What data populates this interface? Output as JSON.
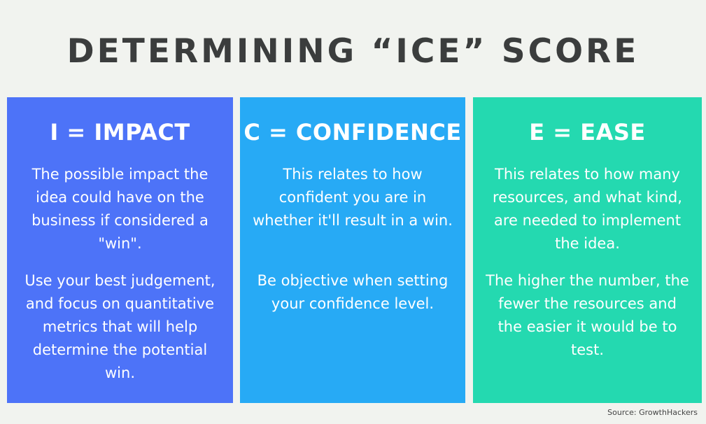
{
  "title": "DETERMINING “ICE” SCORE",
  "colors": {
    "background": "#f1f3ef",
    "title": "#3b3d3d",
    "impact": "#4d73f8",
    "confidence": "#27aaf5",
    "ease": "#24d9b0"
  },
  "cards": [
    {
      "heading": "I = IMPACT",
      "paragraph1": "The possible impact the idea could have on the business if considered a \"win\".",
      "paragraph2": "Use your best judgement, and focus on quantitative metrics that will help determine the potential win."
    },
    {
      "heading": "C = CONFIDENCE",
      "paragraph1": "This relates to how confident you are in whether it'll result in a win.",
      "paragraph2": "Be objective when setting your confidence level."
    },
    {
      "heading": "E = EASE",
      "paragraph1": "This relates to how many resources, and what kind, are needed to implement the idea.",
      "paragraph2": "The higher the number, the fewer the resources and the easier it would be to test."
    }
  ],
  "source": "Source: GrowthHackers"
}
